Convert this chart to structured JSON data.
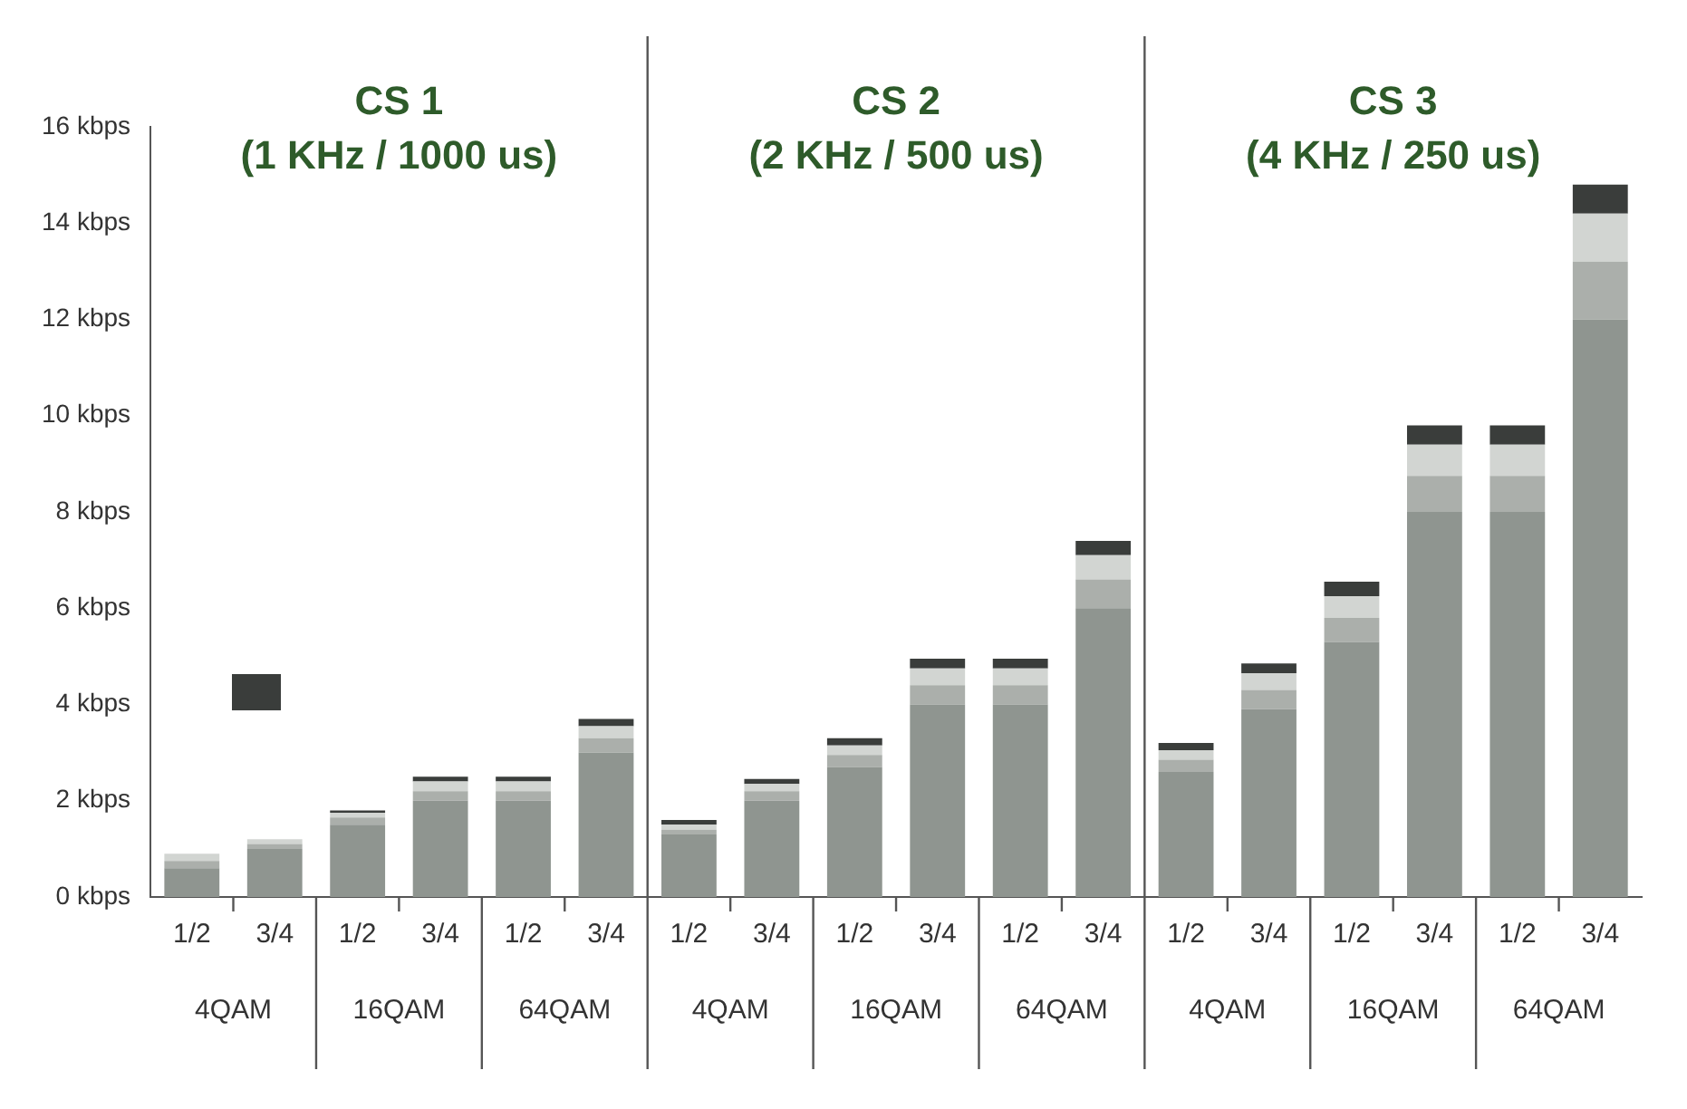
{
  "chart_data": {
    "type": "bar",
    "stacked": true,
    "categories": [
      "1/2",
      "3/4",
      "1/2",
      "3/4",
      "1/2",
      "3/4",
      "1/2",
      "3/4",
      "1/2",
      "3/4",
      "1/2",
      "3/4",
      "1/2",
      "3/4",
      "1/2",
      "3/4",
      "1/2",
      "3/4"
    ],
    "series": [
      {
        "color": "#8f9590",
        "values": [
          0.6,
          1.0,
          1.5,
          2.0,
          2.0,
          3.0,
          1.3,
          2.0,
          2.7,
          4.0,
          4.0,
          6.0,
          2.6,
          3.9,
          5.3,
          8,
          8,
          12
        ]
      },
      {
        "color": "#abafab",
        "values": [
          0.15,
          0.1,
          0.15,
          0.2,
          0.2,
          0.3,
          0.1,
          0.2,
          0.25,
          0.4,
          0.4,
          0.6,
          0.25,
          0.4,
          0.5,
          0.75,
          0.75,
          1.2
        ]
      },
      {
        "color": "#d2d5d2",
        "values": [
          0.15,
          0.1,
          0.1,
          0.2,
          0.2,
          0.25,
          0.1,
          0.15,
          0.2,
          0.35,
          0.35,
          0.5,
          0.2,
          0.35,
          0.45,
          0.65,
          0.65,
          1.0
        ]
      },
      {
        "color": "#3a3d3b",
        "values": [
          0,
          0,
          0.05,
          0.1,
          0.1,
          0.15,
          0.1,
          0.1,
          0.15,
          0.2,
          0.2,
          0.3,
          0.15,
          0.2,
          0.3,
          0.4,
          0.4,
          0.6
        ]
      }
    ],
    "ylim": [
      0,
      16
    ],
    "yticks": [
      {
        "value": 0,
        "label": "0 kbps"
      },
      {
        "value": 2,
        "label": "2 kbps"
      },
      {
        "value": 4,
        "label": "4 kbps"
      },
      {
        "value": 6,
        "label": "6 kbps"
      },
      {
        "value": 8,
        "label": "8 kbps"
      },
      {
        "value": 10,
        "label": "10 kbps"
      },
      {
        "value": 12,
        "label": "12 kbps"
      },
      {
        "value": 14,
        "label": "14 kbps"
      },
      {
        "value": 16,
        "label": "16 kbps"
      }
    ],
    "grid": false,
    "legend": false,
    "annotations": [
      "CS 1\n(1 KHz / 1000 us)",
      "CS 2\n(2 KHz / 500 us)",
      "CS 3\n(4 KHz / 250 us)",
      "4QAM",
      "16QAM",
      "64QAM",
      "4QAM",
      "16QAM",
      "64QAM",
      "4QAM",
      "16QAM",
      "64QAM"
    ]
  }
}
